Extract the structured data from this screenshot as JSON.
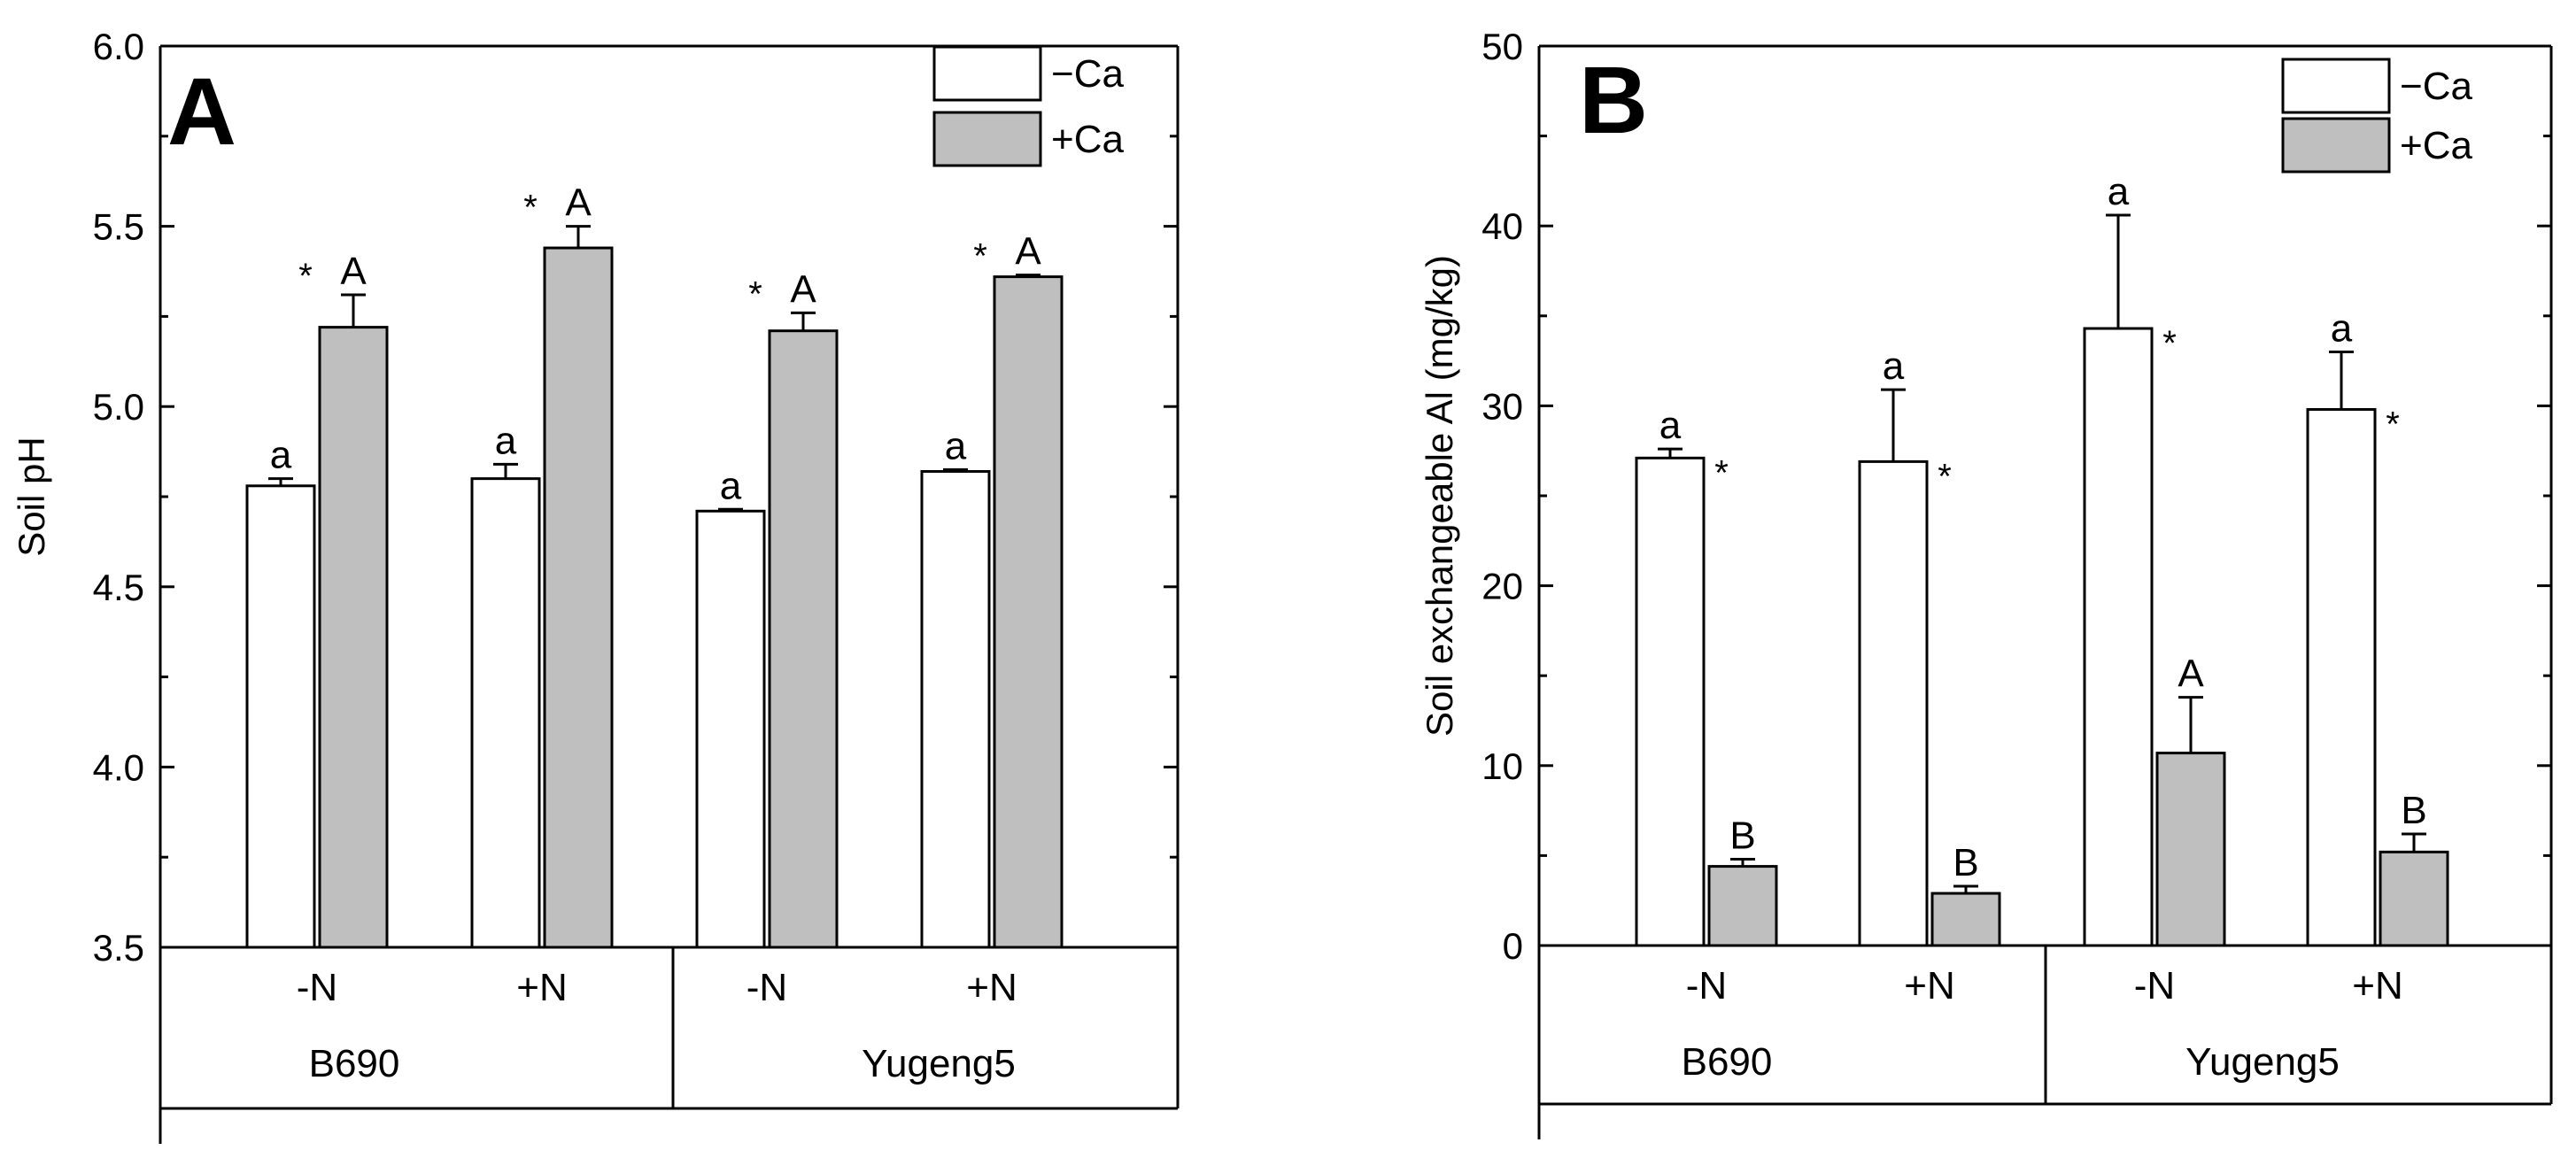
{
  "chart_data": [
    {
      "type": "bar",
      "panel_label": "A",
      "ylabel": "Soil pH",
      "ylim": [
        3.5,
        6.0
      ],
      "yticks": [
        "3.5",
        "4.0",
        "4.5",
        "5.0",
        "5.5",
        "6.0"
      ],
      "categories": [
        "-N",
        "+N",
        "-N",
        "+N"
      ],
      "groups": [
        {
          "label": "B690",
          "categories": [
            "-N",
            "+N"
          ]
        },
        {
          "label": "Yugeng5",
          "categories": [
            "-N",
            "+N"
          ]
        }
      ],
      "legend_position": "top-right",
      "series": [
        {
          "name": "−Ca",
          "color": "#ffffff",
          "values": [
            4.78,
            4.8,
            4.71,
            4.82
          ],
          "errors": [
            0.02,
            0.04,
            0.005,
            0.005
          ],
          "letters": [
            "a",
            "a",
            "a",
            "a"
          ],
          "stars": [
            "",
            "",
            "",
            ""
          ]
        },
        {
          "name": "+Ca",
          "color": "#bfbfbf",
          "values": [
            5.22,
            5.44,
            5.21,
            5.36
          ],
          "errors": [
            0.09,
            0.06,
            0.05,
            0.005
          ],
          "letters": [
            "A",
            "A",
            "A",
            "A"
          ],
          "stars": [
            "*",
            "*",
            "*",
            "*"
          ]
        }
      ]
    },
    {
      "type": "bar",
      "panel_label": "B",
      "ylabel": "Soil exchangeable Al (mg/kg)",
      "ylim": [
        0,
        50
      ],
      "yticks": [
        "0",
        "10",
        "20",
        "30",
        "40",
        "50"
      ],
      "categories": [
        "-N",
        "+N",
        "-N",
        "+N"
      ],
      "groups": [
        {
          "label": "B690",
          "categories": [
            "-N",
            "+N"
          ]
        },
        {
          "label": "Yugeng5",
          "categories": [
            "-N",
            "+N"
          ]
        }
      ],
      "legend_position": "top-right",
      "series": [
        {
          "name": "−Ca",
          "color": "#ffffff",
          "values": [
            27.1,
            26.9,
            34.3,
            29.8
          ],
          "errors": [
            0.5,
            4.0,
            6.3,
            3.2
          ],
          "letters": [
            "a",
            "a",
            "a",
            "a"
          ],
          "stars": [
            "*",
            "*",
            "*",
            "*"
          ]
        },
        {
          "name": "+Ca",
          "color": "#bfbfbf",
          "values": [
            4.4,
            2.9,
            10.7,
            5.2
          ],
          "errors": [
            0.4,
            0.4,
            3.1,
            1.0
          ],
          "letters": [
            "B",
            "B",
            "A",
            "B"
          ],
          "stars": [
            "",
            "",
            "",
            ""
          ]
        }
      ]
    }
  ]
}
